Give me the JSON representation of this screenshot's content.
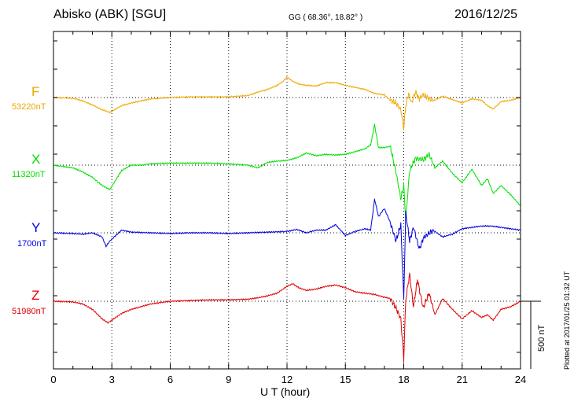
{
  "header": {
    "station": "Abisko (ABK)  [SGU]",
    "coords": "GG ( 68.36°,  18.82° )",
    "date": "2016/12/25"
  },
  "side_note": "Plotted at 2017/01/25 01:32 UT",
  "scale_bar": {
    "label": "500 nT",
    "value": 500
  },
  "channels": [
    {
      "name": "F",
      "baseline": "53220nT",
      "color": "#f0a800"
    },
    {
      "name": "X",
      "baseline": "11320nT",
      "color": "#00e000"
    },
    {
      "name": "Y",
      "baseline": "1700nT",
      "color": "#0000e0"
    },
    {
      "name": "Z",
      "baseline": "51980nT",
      "color": "#e00000"
    }
  ],
  "chart_data": {
    "type": "line",
    "xlabel": "U T (hour)",
    "xlim": [
      0,
      24
    ],
    "xticks": [
      "0",
      "3",
      "6",
      "9",
      "12",
      "15",
      "18",
      "21",
      "24"
    ],
    "y_units": "nT offset from baseline",
    "grid": true,
    "series": [
      {
        "name": "F",
        "x": [
          0,
          1,
          1.5,
          2,
          2.5,
          2.9,
          3.2,
          3.5,
          4,
          4.5,
          5,
          5.5,
          6,
          7,
          8,
          9,
          10,
          10.5,
          11,
          11.5,
          11.8,
          12,
          12.3,
          12.6,
          13,
          13.5,
          14,
          14.5,
          15,
          15.5,
          16,
          16.5,
          17,
          17.3,
          17.6,
          17.85,
          18.0,
          18.1,
          18.25,
          18.4,
          18.6,
          18.8,
          19,
          19.5,
          20,
          20.5,
          21,
          21.5,
          22,
          22.3,
          22.6,
          23,
          23.5,
          24
        ],
        "y": [
          0,
          -5,
          -25,
          -55,
          -90,
          -110,
          -85,
          -60,
          -40,
          -25,
          -10,
          -5,
          0,
          5,
          5,
          5,
          15,
          40,
          60,
          90,
          120,
          150,
          120,
          100,
          90,
          85,
          110,
          110,
          90,
          75,
          60,
          30,
          20,
          -20,
          -40,
          -90,
          -230,
          -60,
          30,
          -40,
          40,
          -10,
          20,
          -25,
          10,
          -15,
          -40,
          -10,
          -20,
          -60,
          -85,
          -30,
          -20,
          0
        ]
      },
      {
        "name": "X",
        "x": [
          0,
          1,
          1.5,
          2,
          2.5,
          2.9,
          3.2,
          3.5,
          4,
          4.5,
          5,
          6,
          7,
          8,
          9,
          10,
          10.5,
          11,
          11.5,
          12,
          12.5,
          13,
          13.5,
          14,
          14.5,
          15,
          15.5,
          16,
          16.3,
          16.5,
          16.7,
          17,
          17.3,
          17.6,
          17.85,
          18.0,
          18.1,
          18.3,
          18.6,
          19,
          19.3,
          19.6,
          20,
          20.5,
          21,
          21.5,
          22,
          22.3,
          22.6,
          23,
          23.5,
          24
        ],
        "y": [
          0,
          -20,
          -50,
          -90,
          -150,
          -180,
          -110,
          -40,
          0,
          0,
          10,
          15,
          15,
          15,
          10,
          0,
          -20,
          20,
          30,
          35,
          55,
          90,
          70,
          80,
          75,
          80,
          100,
          120,
          150,
          300,
          130,
          130,
          140,
          -50,
          -250,
          -150,
          -400,
          -40,
          50,
          40,
          80,
          -20,
          30,
          -60,
          -130,
          -30,
          -150,
          -100,
          -210,
          -150,
          -220,
          -300
        ]
      },
      {
        "name": "Y",
        "x": [
          0,
          1,
          1.5,
          2,
          2.5,
          2.7,
          2.9,
          3.2,
          3.5,
          4,
          5,
          6,
          7,
          8,
          9,
          10,
          11,
          12,
          12.5,
          13,
          13.5,
          14,
          14.5,
          15,
          15.5,
          16,
          16.3,
          16.5,
          16.7,
          17,
          17.3,
          17.6,
          17.85,
          18.0,
          18.1,
          18.3,
          18.5,
          18.8,
          19,
          19.5,
          20,
          20.5,
          21,
          21.5,
          22,
          22.5,
          23,
          23.5,
          24
        ],
        "y": [
          0,
          -5,
          -10,
          0,
          -30,
          -100,
          -60,
          -20,
          20,
          5,
          0,
          -5,
          0,
          0,
          -5,
          0,
          5,
          10,
          25,
          0,
          20,
          20,
          60,
          -20,
          10,
          30,
          20,
          250,
          120,
          180,
          80,
          -60,
          60,
          -500,
          150,
          -60,
          40,
          -120,
          -40,
          20,
          -30,
          -10,
          30,
          40,
          50,
          50,
          40,
          30,
          20
        ]
      },
      {
        "name": "Z",
        "x": [
          0,
          1,
          1.5,
          2,
          2.5,
          2.8,
          3.1,
          3.5,
          4,
          4.5,
          5,
          5.5,
          6,
          7,
          8,
          9,
          10,
          10.5,
          11,
          11.5,
          12,
          12.3,
          12.6,
          13,
          13.5,
          14,
          14.5,
          15,
          15.5,
          16,
          16.5,
          17,
          17.3,
          17.6,
          17.85,
          18.0,
          18.1,
          18.3,
          18.5,
          18.7,
          19,
          19.3,
          19.6,
          20,
          20.5,
          21,
          21.5,
          22,
          22.3,
          22.6,
          23,
          23.5,
          24
        ],
        "y": [
          0,
          -5,
          -20,
          -60,
          -130,
          -160,
          -130,
          -90,
          -60,
          -40,
          -20,
          -10,
          0,
          5,
          10,
          10,
          15,
          25,
          40,
          60,
          110,
          130,
          100,
          80,
          90,
          110,
          120,
          100,
          70,
          60,
          50,
          30,
          20,
          -50,
          -130,
          -430,
          10,
          200,
          -40,
          160,
          -50,
          60,
          -100,
          20,
          -60,
          -130,
          -70,
          -120,
          -100,
          -140,
          -60,
          -40,
          0
        ]
      }
    ]
  }
}
